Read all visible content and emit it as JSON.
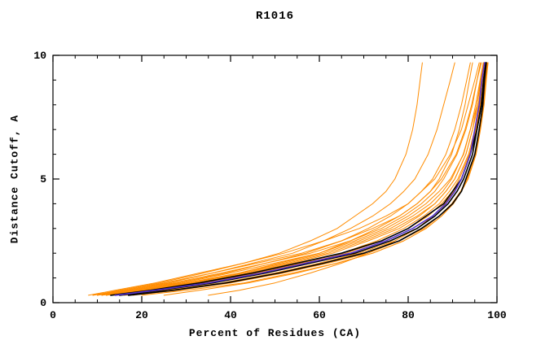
{
  "chart_data": {
    "type": "line",
    "title": "R1016",
    "xlabel": "Percent of Residues (CA)",
    "ylabel": "Distance Cutoff, A",
    "xlim": [
      0,
      100
    ],
    "ylim": [
      0,
      10
    ],
    "xticks": [
      0,
      20,
      40,
      60,
      80,
      100
    ],
    "xticks_minor": [
      5,
      10,
      15,
      25,
      30,
      35,
      45,
      50,
      55,
      65,
      70,
      75,
      85,
      90,
      95
    ],
    "yticks": [
      0,
      5,
      10
    ],
    "yticks_minor": [
      1,
      2,
      3,
      4,
      6,
      7,
      8,
      9
    ],
    "grid": false,
    "legend": "none",
    "colors": {
      "background": "#ffffff",
      "frame": "#000000",
      "orange_series": "#FF8C00",
      "black_series": "#000000",
      "blue_series": "#5533CC"
    },
    "y_levels": [
      0.3,
      0.5,
      0.8,
      1.2,
      1.6,
      2.0,
      2.5,
      3.0,
      3.5,
      4.0,
      4.5,
      5.0,
      6.0,
      7.0,
      8.0,
      9.0,
      9.7
    ],
    "series": [
      {
        "name": "orange-01",
        "color": "#FF8C00",
        "width": 1,
        "x": [
          10,
          17,
          27,
          38,
          48,
          58,
          67,
          74,
          79,
          83,
          86,
          88,
          91,
          93,
          94.5,
          95.5,
          96.5
        ]
      },
      {
        "name": "orange-02",
        "color": "#FF8C00",
        "width": 1,
        "x": [
          12,
          20,
          31,
          43,
          53,
          62,
          70,
          77,
          82,
          86,
          88.5,
          90.5,
          93,
          94.5,
          95.5,
          96.5,
          97
        ]
      },
      {
        "name": "orange-03",
        "color": "#FF8C00",
        "width": 1,
        "x": [
          8,
          14,
          23,
          33,
          43,
          52,
          61,
          69,
          75,
          80,
          83,
          86,
          89.5,
          92,
          93.5,
          95,
          96
        ]
      },
      {
        "name": "orange-04",
        "color": "#FF8C00",
        "width": 1,
        "x": [
          16,
          26,
          38,
          50,
          60,
          69,
          77,
          82,
          86,
          89,
          91,
          92.5,
          94.5,
          95.5,
          96.5,
          97.2,
          97.7
        ]
      },
      {
        "name": "orange-05",
        "color": "#FF8C00",
        "width": 1,
        "x": [
          11,
          18,
          29,
          40,
          50,
          60,
          68,
          75,
          80,
          84,
          87,
          89.5,
          92.5,
          94,
          95.5,
          96.3,
          97
        ]
      },
      {
        "name": "orange-06",
        "color": "#FF8C00",
        "width": 1,
        "x": [
          9,
          15,
          24,
          34,
          43,
          51,
          58,
          64,
          68,
          72,
          75,
          77,
          79.5,
          81,
          82,
          82.7,
          83.2
        ]
      },
      {
        "name": "orange-07",
        "color": "#FF8C00",
        "width": 1,
        "x": [
          10,
          16,
          26,
          36,
          45,
          54,
          61,
          67,
          72,
          76,
          79,
          81.5,
          84.5,
          86.5,
          88,
          89.5,
          90.5
        ]
      },
      {
        "name": "orange-08",
        "color": "#FF8C00",
        "width": 1,
        "x": [
          13,
          21,
          32,
          44,
          54,
          63,
          71,
          78,
          82.5,
          86,
          88.5,
          90.5,
          93,
          94.5,
          95.8,
          96.6,
          97.2
        ]
      },
      {
        "name": "orange-09",
        "color": "#FF8C00",
        "width": 1,
        "x": [
          15,
          24,
          36,
          47,
          57,
          66,
          74,
          80,
          84.5,
          87.5,
          90,
          91.5,
          93.8,
          95.2,
          96.2,
          97,
          97.5
        ]
      },
      {
        "name": "orange-10",
        "color": "#FF8C00",
        "width": 1,
        "x": [
          9,
          16,
          25,
          36,
          46,
          56,
          65,
          72,
          78,
          82,
          85,
          87.5,
          90.8,
          92.8,
          94.3,
          95.5,
          96.3
        ]
      },
      {
        "name": "orange-11",
        "color": "#FF8C00",
        "width": 1,
        "x": [
          18,
          28,
          40,
          52,
          62,
          71,
          78,
          83.5,
          87,
          89.8,
          91.8,
          93.2,
          95,
          96,
          96.8,
          97.4,
          97.8
        ]
      },
      {
        "name": "orange-12",
        "color": "#FF8C00",
        "width": 1,
        "x": [
          12,
          19,
          30,
          42,
          52,
          61,
          69,
          76,
          81,
          85,
          87.8,
          89.8,
          92.4,
          94,
          95.2,
          96.2,
          96.9
        ]
      },
      {
        "name": "orange-13",
        "color": "#FF8C00",
        "width": 1,
        "x": [
          11,
          18,
          28,
          39,
          48,
          57,
          65,
          71,
          76,
          80,
          83,
          85.5,
          88.5,
          90.5,
          92,
          93.2,
          94
        ]
      },
      {
        "name": "orange-14",
        "color": "#FF8C00",
        "width": 1,
        "x": [
          14,
          23,
          34,
          46,
          56,
          65,
          73,
          79,
          83.5,
          87,
          89.3,
          91.2,
          93.6,
          95,
          96,
          96.8,
          97.3
        ]
      },
      {
        "name": "orange-15",
        "color": "#FF8C00",
        "width": 1,
        "x": [
          20,
          30,
          43,
          54,
          64,
          72,
          79,
          84,
          87.5,
          90.2,
          92,
          93.4,
          95.2,
          96.2,
          97,
          97.5,
          97.9
        ]
      },
      {
        "name": "orange-16",
        "color": "#FF8C00",
        "width": 1,
        "x": [
          13,
          21,
          31,
          42,
          51,
          60,
          67,
          73,
          78,
          82,
          85,
          87,
          89.8,
          91.5,
          92.8,
          93.8,
          94.5
        ]
      },
      {
        "name": "orange-17",
        "color": "#FF8C00",
        "width": 1,
        "x": [
          35,
          42,
          50,
          58,
          65,
          71,
          77,
          82,
          85.5,
          88.3,
          90.3,
          92,
          94,
          95.3,
          96.3,
          97,
          97.5
        ]
      },
      {
        "name": "orange-18",
        "color": "#FF8C00",
        "width": 1,
        "x": [
          25,
          33,
          44,
          55,
          64,
          72,
          79,
          84,
          87.5,
          90,
          92,
          93.5,
          95.3,
          96.3,
          97.1,
          97.6,
          98
        ]
      },
      {
        "name": "black-01",
        "color": "#000000",
        "width": 1.6,
        "x": [
          15,
          24,
          36,
          48,
          58,
          68,
          76,
          82,
          86,
          89,
          91,
          92.5,
          94.5,
          95.5,
          96.5,
          97,
          97.5
        ]
      },
      {
        "name": "black-02",
        "color": "#000000",
        "width": 1.6,
        "x": [
          13,
          22,
          33,
          45,
          55,
          65,
          74,
          80,
          84,
          88,
          90,
          92,
          94,
          95.5,
          96.5,
          97,
          97.5
        ]
      },
      {
        "name": "black-03",
        "color": "#000000",
        "width": 1.6,
        "x": [
          17,
          27,
          39,
          51,
          61,
          70,
          78,
          83,
          87,
          90,
          92,
          93,
          95,
          96,
          96.8,
          97.2,
          97.6
        ]
      },
      {
        "name": "blue-01",
        "color": "#5533CC",
        "width": 1.6,
        "x": [
          14,
          23,
          35,
          47,
          57,
          67,
          75,
          81,
          85.5,
          88.5,
          90.5,
          92,
          94,
          95,
          96,
          96.6,
          97.2
        ]
      }
    ]
  }
}
